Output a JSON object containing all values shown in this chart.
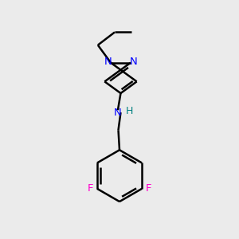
{
  "bg_color": "#ebebeb",
  "bond_color": "#000000",
  "N_color": "#0000ff",
  "F_color": "#ff00cc",
  "NH_N_color": "#0000ff",
  "NH_H_color": "#008080",
  "line_width": 1.8,
  "figsize": [
    3.0,
    3.0
  ],
  "dpi": 100,
  "xlim": [
    0,
    10
  ],
  "ylim": [
    0,
    10
  ]
}
